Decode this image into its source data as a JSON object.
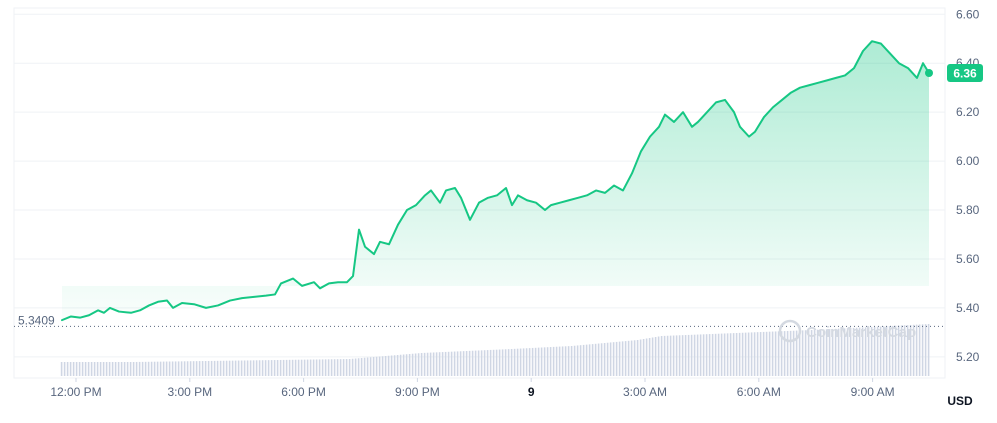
{
  "chart_data": {
    "type": "area",
    "currency_label": "USD",
    "watermark": "CoinMarketCap",
    "open_price_label": "5.3409",
    "current_price_label": "6.36",
    "y_ticks": [
      "6.60",
      "6.40",
      "6.20",
      "6.00",
      "5.80",
      "5.60",
      "5.40",
      "5.20"
    ],
    "x_ticks": [
      "12:00 PM",
      "3:00 PM",
      "6:00 PM",
      "9:00 PM",
      "9",
      "3:00 AM",
      "6:00 AM",
      "9:00 AM"
    ],
    "ylim": [
      5.14,
      6.64
    ],
    "grid": true,
    "colors": {
      "line": "#16c784",
      "fill": "#16c784",
      "volume": "#cfd6e4",
      "grid": "#eff2f5",
      "axis_text": "#58667e",
      "badge_text": "#ffffff"
    },
    "price_series": [
      [
        0,
        5.35
      ],
      [
        3,
        5.365
      ],
      [
        6,
        5.36
      ],
      [
        9,
        5.37
      ],
      [
        12,
        5.39
      ],
      [
        14,
        5.38
      ],
      [
        16,
        5.4
      ],
      [
        19,
        5.385
      ],
      [
        23,
        5.38
      ],
      [
        26,
        5.39
      ],
      [
        29,
        5.41
      ],
      [
        32,
        5.425
      ],
      [
        35,
        5.43
      ],
      [
        37,
        5.4
      ],
      [
        40,
        5.42
      ],
      [
        44,
        5.415
      ],
      [
        48,
        5.4
      ],
      [
        52,
        5.41
      ],
      [
        56,
        5.43
      ],
      [
        60,
        5.44
      ],
      [
        64,
        5.445
      ],
      [
        68,
        5.45
      ],
      [
        71,
        5.455
      ],
      [
        73,
        5.5
      ],
      [
        77,
        5.52
      ],
      [
        80,
        5.49
      ],
      [
        84,
        5.505
      ],
      [
        86,
        5.48
      ],
      [
        89,
        5.5
      ],
      [
        92,
        5.505
      ],
      [
        95,
        5.505
      ],
      [
        97,
        5.53
      ],
      [
        99,
        5.72
      ],
      [
        101,
        5.65
      ],
      [
        104,
        5.62
      ],
      [
        106,
        5.67
      ],
      [
        109,
        5.66
      ],
      [
        112,
        5.74
      ],
      [
        115,
        5.8
      ],
      [
        118,
        5.82
      ],
      [
        121,
        5.86
      ],
      [
        123,
        5.88
      ],
      [
        126,
        5.83
      ],
      [
        128,
        5.88
      ],
      [
        131,
        5.89
      ],
      [
        133,
        5.85
      ],
      [
        136,
        5.76
      ],
      [
        139,
        5.83
      ],
      [
        142,
        5.85
      ],
      [
        145,
        5.86
      ],
      [
        148,
        5.89
      ],
      [
        150,
        5.82
      ],
      [
        152,
        5.86
      ],
      [
        155,
        5.84
      ],
      [
        158,
        5.83
      ],
      [
        161,
        5.8
      ],
      [
        163,
        5.82
      ],
      [
        166,
        5.83
      ],
      [
        169,
        5.84
      ],
      [
        172,
        5.85
      ],
      [
        175,
        5.86
      ],
      [
        178,
        5.88
      ],
      [
        181,
        5.87
      ],
      [
        184,
        5.9
      ],
      [
        187,
        5.88
      ],
      [
        190,
        5.95
      ],
      [
        193,
        6.04
      ],
      [
        196,
        6.1
      ],
      [
        199,
        6.14
      ],
      [
        201,
        6.19
      ],
      [
        204,
        6.16
      ],
      [
        207,
        6.2
      ],
      [
        210,
        6.14
      ],
      [
        212,
        6.16
      ],
      [
        215,
        6.2
      ],
      [
        218,
        6.24
      ],
      [
        221,
        6.25
      ],
      [
        224,
        6.2
      ],
      [
        226,
        6.14
      ],
      [
        229,
        6.1
      ],
      [
        231,
        6.12
      ],
      [
        234,
        6.18
      ],
      [
        237,
        6.22
      ],
      [
        240,
        6.25
      ],
      [
        243,
        6.28
      ],
      [
        246,
        6.3
      ],
      [
        249,
        6.31
      ],
      [
        252,
        6.32
      ],
      [
        255,
        6.33
      ],
      [
        258,
        6.34
      ],
      [
        261,
        6.35
      ],
      [
        264,
        6.38
      ],
      [
        267,
        6.45
      ],
      [
        270,
        6.49
      ],
      [
        273,
        6.48
      ],
      [
        276,
        6.44
      ],
      [
        279,
        6.4
      ],
      [
        282,
        6.38
      ],
      [
        285,
        6.34
      ],
      [
        287,
        6.4
      ],
      [
        289,
        6.36
      ]
    ],
    "volume_series": [
      [
        0,
        0.14
      ],
      [
        24,
        0.14
      ],
      [
        48,
        0.15
      ],
      [
        72,
        0.16
      ],
      [
        96,
        0.17
      ],
      [
        120,
        0.23
      ],
      [
        150,
        0.27
      ],
      [
        170,
        0.3
      ],
      [
        192,
        0.36
      ],
      [
        200,
        0.4
      ],
      [
        225,
        0.43
      ],
      [
        250,
        0.46
      ],
      [
        270,
        0.49
      ],
      [
        289,
        0.52
      ]
    ]
  }
}
